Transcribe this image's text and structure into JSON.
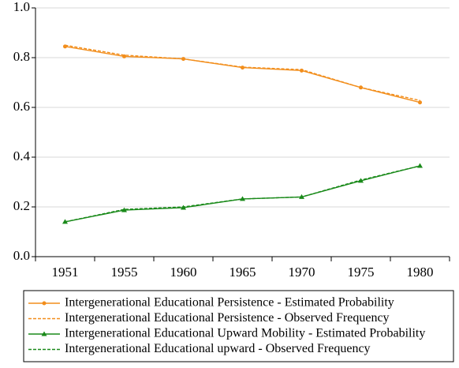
{
  "chart_data": {
    "type": "line",
    "categories": [
      "1951",
      "1955",
      "1960",
      "1965",
      "1970",
      "1975",
      "1980"
    ],
    "series": [
      {
        "name": "Intergenerational Educational Persistence - Estimated Probability",
        "color": "#f28e1c",
        "line_style": "solid",
        "marker": "circle",
        "values": [
          0.845,
          0.805,
          0.795,
          0.76,
          0.748,
          0.68,
          0.62
        ]
      },
      {
        "name": "Intergenerational Educational Persistence - Observed Frequency",
        "color": "#f28e1c",
        "line_style": "dashed",
        "marker": "none",
        "values": [
          0.85,
          0.81,
          0.795,
          0.762,
          0.752,
          0.68,
          0.628
        ]
      },
      {
        "name": "Intergenerational Educational Upward Mobility - Estimated Probability",
        "color": "#1a8a1a",
        "line_style": "solid",
        "marker": "triangle",
        "values": [
          0.14,
          0.187,
          0.197,
          0.232,
          0.24,
          0.305,
          0.365
        ]
      },
      {
        "name": "Intergenerational Educational upward - Observed Frequency",
        "color": "#1a8a1a",
        "line_style": "dashed",
        "marker": "none",
        "values": [
          0.14,
          0.19,
          0.2,
          0.232,
          0.24,
          0.308,
          0.365
        ]
      }
    ],
    "ylim": [
      0,
      1
    ],
    "yticks": [
      {
        "value": 0,
        "label": "0.0"
      },
      0.2,
      0.4,
      0.6,
      0.8,
      {
        "value": 1,
        "label": "1.0"
      }
    ],
    "grid": true,
    "legend": "bottom"
  }
}
